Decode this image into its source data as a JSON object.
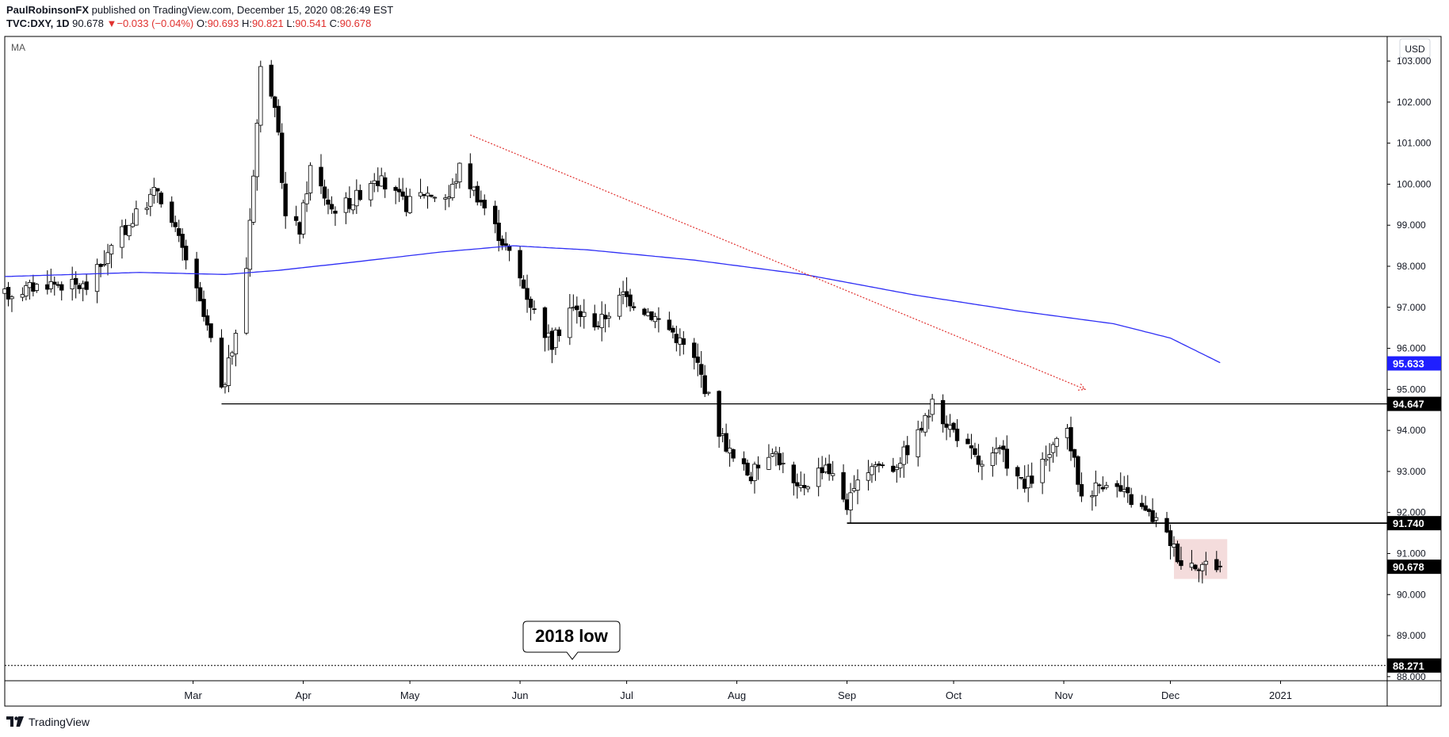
{
  "header": {
    "author": "PaulRobinsonFX",
    "published_text": " published on TradingView.com, December 15, 2020 08:26:49 EST",
    "symbol": "TVC:DXY, 1D",
    "last": "90.678",
    "arrow": "▼",
    "change": "−0.033 (−0.04%)",
    "o_label": "O:",
    "o": "90.693",
    "h_label": "H:",
    "h": "90.821",
    "l_label": "L:",
    "l": "90.541",
    "c_label": "C:",
    "c": "90.678"
  },
  "indicator_label": "MA",
  "currency_button": "USD",
  "footer_brand": "TradingView",
  "annotation": {
    "text": "2018 low"
  },
  "colors": {
    "up_candle": "#ffffff",
    "down_candle": "#000000",
    "wick": "#000000",
    "ma": "#2f2ff5",
    "trend": "#e0312f",
    "level": "#000000",
    "ma_label_bg": "#1f1fff",
    "highlight": "#f2d6d6"
  },
  "chart_data": {
    "type": "candlestick",
    "symbol": "DXY",
    "timeframe": "1D",
    "ylim": [
      87.9,
      103.6
    ],
    "y_ticks": [
      "88.000",
      "89.000",
      "90.000",
      "91.000",
      "92.000",
      "93.000",
      "94.000",
      "95.000",
      "96.000",
      "97.000",
      "98.000",
      "99.000",
      "100.000",
      "101.000",
      "102.000",
      "103.000"
    ],
    "x_ticks": [
      {
        "label": "Mar",
        "date": "2020-03-01"
      },
      {
        "label": "Apr",
        "date": "2020-04-01"
      },
      {
        "label": "May",
        "date": "2020-05-01"
      },
      {
        "label": "Jun",
        "date": "2020-06-01"
      },
      {
        "label": "Jul",
        "date": "2020-07-01"
      },
      {
        "label": "Aug",
        "date": "2020-08-01"
      },
      {
        "label": "Sep",
        "date": "2020-09-01"
      },
      {
        "label": "Oct",
        "date": "2020-10-01"
      },
      {
        "label": "Nov",
        "date": "2020-11-01"
      },
      {
        "label": "Dec",
        "date": "2020-12-01"
      },
      {
        "label": "2021",
        "date": "2021-01-01"
      }
    ],
    "x_range": [
      "2020-01-08",
      "2021-01-31"
    ],
    "price_path": [
      [
        "2020-01-08",
        97.3
      ],
      [
        "2020-01-20",
        97.6
      ],
      [
        "2020-01-31",
        97.5
      ],
      [
        "2020-02-10",
        98.8
      ],
      [
        "2020-02-20",
        99.9
      ],
      [
        "2020-02-28",
        98.2
      ],
      [
        "2020-03-06",
        96.2
      ],
      [
        "2020-03-09",
        94.9
      ],
      [
        "2020-03-13",
        96.3
      ],
      [
        "2020-03-16",
        98.0
      ],
      [
        "2020-03-19",
        101.5
      ],
      [
        "2020-03-20",
        102.8
      ],
      [
        "2020-03-23",
        102.3
      ],
      [
        "2020-03-25",
        101.1
      ],
      [
        "2020-03-27",
        99.2
      ],
      [
        "2020-03-31",
        98.9
      ],
      [
        "2020-04-03",
        100.4
      ],
      [
        "2020-04-09",
        99.4
      ],
      [
        "2020-04-15",
        99.6
      ],
      [
        "2020-04-21",
        100.2
      ],
      [
        "2020-04-30",
        99.5
      ],
      [
        "2020-05-05",
        99.8
      ],
      [
        "2020-05-12",
        99.7
      ],
      [
        "2020-05-15",
        100.4
      ],
      [
        "2020-05-21",
        99.6
      ],
      [
        "2020-05-29",
        98.3
      ],
      [
        "2020-06-05",
        96.9
      ],
      [
        "2020-06-10",
        96.1
      ],
      [
        "2020-06-15",
        97.0
      ],
      [
        "2020-06-23",
        96.6
      ],
      [
        "2020-06-30",
        97.3
      ],
      [
        "2020-07-07",
        96.9
      ],
      [
        "2020-07-14",
        96.4
      ],
      [
        "2020-07-21",
        95.6
      ],
      [
        "2020-07-27",
        94.0
      ],
      [
        "2020-07-31",
        93.3
      ],
      [
        "2020-08-05",
        92.9
      ],
      [
        "2020-08-11",
        93.6
      ],
      [
        "2020-08-18",
        92.5
      ],
      [
        "2020-08-26",
        93.2
      ],
      [
        "2020-09-01",
        92.2
      ],
      [
        "2020-09-08",
        93.2
      ],
      [
        "2020-09-14",
        93.1
      ],
      [
        "2020-09-21",
        93.9
      ],
      [
        "2020-09-25",
        94.6
      ],
      [
        "2020-10-02",
        93.9
      ],
      [
        "2020-10-09",
        93.1
      ],
      [
        "2020-10-14",
        93.5
      ],
      [
        "2020-10-21",
        92.6
      ],
      [
        "2020-10-28",
        93.4
      ],
      [
        "2020-11-02",
        94.0
      ],
      [
        "2020-11-06",
        92.4
      ],
      [
        "2020-11-13",
        92.8
      ],
      [
        "2020-11-20",
        92.3
      ],
      [
        "2020-11-27",
        91.8
      ],
      [
        "2020-12-01",
        91.3
      ],
      [
        "2020-12-04",
        90.8
      ],
      [
        "2020-12-15",
        90.7
      ]
    ],
    "ohlc_last": {
      "date": "2020-12-15",
      "open": 90.693,
      "high": 90.821,
      "low": 90.541,
      "close": 90.678
    },
    "moving_average": {
      "name": "MA",
      "last_value": "95.633",
      "points": [
        [
          "2020-01-08",
          97.75
        ],
        [
          "2020-02-15",
          97.85
        ],
        [
          "2020-03-10",
          97.8
        ],
        [
          "2020-03-25",
          97.9
        ],
        [
          "2020-04-15",
          98.1
        ],
        [
          "2020-05-10",
          98.35
        ],
        [
          "2020-05-30",
          98.5
        ],
        [
          "2020-06-20",
          98.4
        ],
        [
          "2020-07-20",
          98.15
        ],
        [
          "2020-08-20",
          97.8
        ],
        [
          "2020-09-20",
          97.3
        ],
        [
          "2020-10-20",
          96.9
        ],
        [
          "2020-11-15",
          96.6
        ],
        [
          "2020-12-01",
          96.25
        ],
        [
          "2020-12-15",
          95.65
        ]
      ]
    },
    "trendline": {
      "start": [
        "2020-05-18",
        101.2
      ],
      "end": [
        "2020-11-07",
        95.0
      ]
    },
    "levels": [
      {
        "value": 94.647,
        "label": "94.647",
        "from": "2020-03-09"
      },
      {
        "value": 91.74,
        "label": "91.740",
        "from": "2020-09-01"
      },
      {
        "value": 88.271,
        "label": "88.271",
        "from": "2020-01-08",
        "dotted": true
      }
    ],
    "last_price_label": "90.678",
    "highlight_box": {
      "from": "2020-12-02",
      "to": "2020-12-17",
      "low": 90.38,
      "high": 91.35
    }
  }
}
